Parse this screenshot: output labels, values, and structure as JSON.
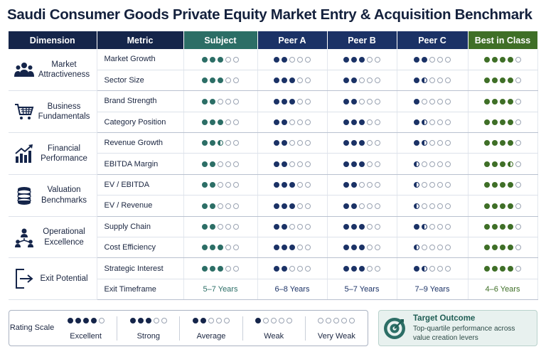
{
  "title": "Saudi Consumer Goods Private Equity Market Entry & Acquisition Benchmark",
  "headers": {
    "dimension": "Dimension",
    "metric": "Metric",
    "subject": "Subject",
    "peer_a": "Peer A",
    "peer_b": "Peer B",
    "peer_c": "Peer C",
    "best": "Best in Class"
  },
  "rating_levels": {
    "full": "filled dot",
    "half": "half-filled dot",
    "empty": "empty dot"
  },
  "colors": {
    "navy": "#15254a",
    "subject_teal": "#2c6e66",
    "peer_navy": "#1b3266",
    "best_green": "#3f6f27"
  },
  "dimensions": [
    {
      "label": "Market Attractiveness",
      "icon": "people-group-icon",
      "rows": [
        {
          "metric": "Market Growth",
          "ratings": [
            3,
            2,
            3,
            2,
            4
          ]
        },
        {
          "metric": "Sector Size",
          "ratings": [
            3,
            3,
            2,
            1.5,
            4
          ]
        }
      ]
    },
    {
      "label": "Business Fundamentals",
      "icon": "shopping-cart-icon",
      "rows": [
        {
          "metric": "Brand Strength",
          "ratings": [
            2,
            3,
            2,
            1,
            4
          ]
        },
        {
          "metric": "Category Position",
          "ratings": [
            3,
            2,
            3,
            1.5,
            4
          ]
        }
      ]
    },
    {
      "label": "Financial Performance",
      "icon": "growth-chart-icon",
      "rows": [
        {
          "metric": "Revenue Growth",
          "ratings": [
            2.5,
            2,
            3,
            1.5,
            4
          ]
        },
        {
          "metric": "EBITDA Margin",
          "ratings": [
            2,
            2,
            3,
            0.5,
            3.5
          ]
        }
      ]
    },
    {
      "label": "Valuation Benchmarks",
      "icon": "coin-stack-icon",
      "rows": [
        {
          "metric": "EV / EBITDA",
          "ratings": [
            2,
            3,
            2,
            0.5,
            4
          ]
        },
        {
          "metric": "EV / Revenue",
          "ratings": [
            2,
            3,
            2,
            0.5,
            4
          ]
        }
      ]
    },
    {
      "label": "Operational Excellence",
      "icon": "org-network-icon",
      "rows": [
        {
          "metric": "Supply Chain",
          "ratings": [
            2,
            2,
            3,
            1.5,
            4
          ]
        },
        {
          "metric": "Cost Efficiency",
          "ratings": [
            3,
            3,
            3,
            0.5,
            4
          ]
        }
      ]
    },
    {
      "label": "Exit Potential",
      "icon": "exit-door-icon",
      "rows": [
        {
          "metric": "Strategic Interest",
          "ratings": [
            3,
            2,
            3,
            1.5,
            4
          ]
        },
        {
          "metric": "Exit Timeframe",
          "text": [
            "5–7 Years",
            "6–8 Years",
            "5–7 Years",
            "7–9 Years",
            "4–6 Years"
          ]
        }
      ]
    }
  ],
  "legend": {
    "title": "Rating Scale",
    "items": [
      {
        "label": "Excellent",
        "value": 4
      },
      {
        "label": "Strong",
        "value": 3
      },
      {
        "label": "Average",
        "value": 2
      },
      {
        "label": "Weak",
        "value": 1
      },
      {
        "label": "Very Weak",
        "value": 0
      }
    ]
  },
  "target": {
    "icon": "target-icon",
    "title": "Target Outcome",
    "description": "Top-quartile performance across value creation levers"
  }
}
